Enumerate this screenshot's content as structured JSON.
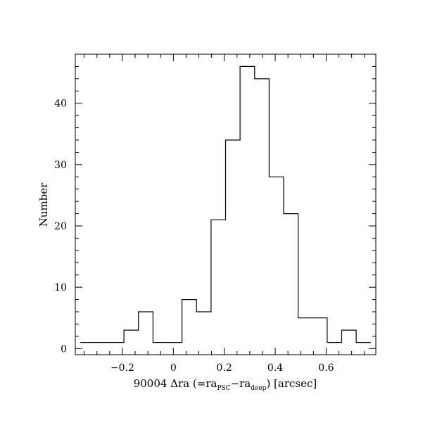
{
  "chart_data": {
    "type": "bar",
    "subtype": "histogram-step",
    "title": "",
    "xlabel": {
      "prefix": "90004 Δra (=ra",
      "sub1": "PSC",
      "mid": "−ra",
      "sub2": "deep",
      "suffix": ") [arcsec]"
    },
    "ylabel": "Number",
    "xlim": [
      -0.385,
      0.795
    ],
    "ylim": [
      -1,
      48
    ],
    "x_ticks_major": [
      -0.2,
      0,
      0.2,
      0.4,
      0.6
    ],
    "x_tick_labels": [
      "−0.2",
      "0",
      "0.2",
      "0.4",
      "0.6"
    ],
    "y_ticks_major": [
      0,
      10,
      20,
      30,
      40
    ],
    "y_tick_labels": [
      "0",
      "10",
      "20",
      "30",
      "40"
    ],
    "bin_width": 0.057,
    "bin_start": -0.365,
    "values": [
      1,
      1,
      1,
      3,
      6,
      1,
      1,
      8,
      6,
      21,
      34,
      46,
      44,
      28,
      22,
      5,
      5,
      1,
      3,
      1
    ],
    "grid": false,
    "legend": "none",
    "line_color": "#000000"
  }
}
